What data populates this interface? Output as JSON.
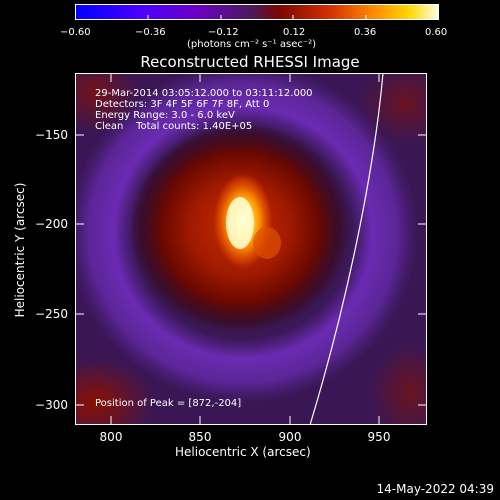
{
  "colorbar": {
    "ticks": [
      "−0.60",
      "−0.36",
      "−0.12",
      "0.12",
      "0.36",
      "0.60"
    ],
    "units": "(photons cm⁻² s⁻¹ asec⁻²)",
    "colors": [
      "#0000ff",
      "#5a00ff",
      "#6b00c8",
      "#5a1a80",
      "#7a0a00",
      "#d02a00",
      "#ff8000",
      "#ffd000",
      "#ffffe0"
    ]
  },
  "plot": {
    "title": "Reconstructed RHESSI Image",
    "info_lines": [
      "29-Mar-2014 03:05:12.000 to 03:11:12.000",
      "Detectors: 3F 4F 5F 6F 7F 8F, Att 0",
      "Energy Range: 3.0 - 6.0 keV",
      "Clean    Total counts: 1.40E+05"
    ],
    "peak_text": "Position of Peak = [872,-204]",
    "xlabel": "Heliocentric X (arcsec)",
    "ylabel": "Heliocentric Y (arcsec)",
    "xticks": [
      "800",
      "850",
      "900",
      "950"
    ],
    "yticks": [
      "−150",
      "−200",
      "−250",
      "−300"
    ]
  },
  "footer": {
    "timestamp": "14-May-2022 04:39"
  }
}
